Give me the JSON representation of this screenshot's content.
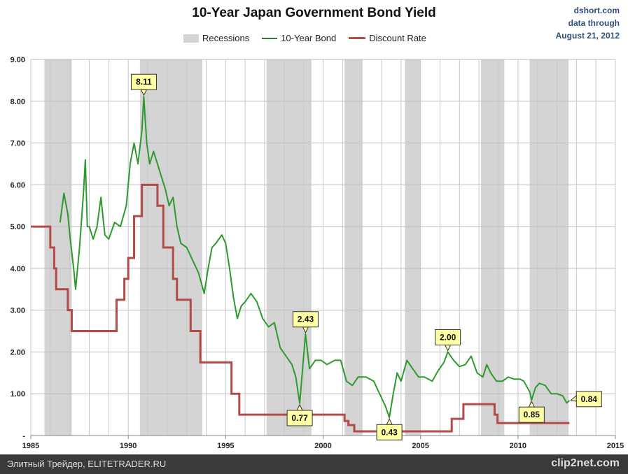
{
  "chart_data": {
    "type": "line",
    "title": "10-Year Japan Government Bond Yield",
    "source": [
      "dshort.com",
      "data through",
      "August 21, 2012"
    ],
    "legend": {
      "placement": "top",
      "items": [
        "Recessions",
        "10-Year Bond",
        "Discount Rate"
      ]
    },
    "xlim": [
      1985,
      2015
    ],
    "ylim": [
      0,
      9
    ],
    "xticks": [
      1985,
      1990,
      1995,
      2000,
      2005,
      2010,
      2015
    ],
    "yticks": [
      {
        "v": 0,
        "l": "-"
      },
      {
        "v": 1,
        "l": "1.00"
      },
      {
        "v": 2,
        "l": "2.00"
      },
      {
        "v": 3,
        "l": "3.00"
      },
      {
        "v": 4,
        "l": "4.00"
      },
      {
        "v": 5,
        "l": "5.00"
      },
      {
        "v": 6,
        "l": "6.00"
      },
      {
        "v": 7,
        "l": "7.00"
      },
      {
        "v": 8,
        "l": "8.00"
      },
      {
        "v": 9,
        "l": "9.00"
      }
    ],
    "grid": true,
    "colors": {
      "bond": "#2e9a2e",
      "discount": "#b34a48",
      "recession": "#d4d4d4",
      "callout": "#ffffa6"
    },
    "recessions": [
      [
        1985.7,
        1987.1
      ],
      [
        1990.6,
        1993.8
      ],
      [
        1997.1,
        1999.4
      ],
      [
        2001.1,
        2002.0
      ],
      [
        2004.2,
        2005.0
      ],
      [
        2008.1,
        2009.3
      ],
      [
        2010.6,
        2012.6
      ]
    ],
    "series": [
      {
        "name": "10-Year Bond",
        "points": [
          [
            1986.5,
            5.1
          ],
          [
            1986.7,
            5.8
          ],
          [
            1986.9,
            5.3
          ],
          [
            1987.0,
            4.8
          ],
          [
            1987.2,
            4.0
          ],
          [
            1987.3,
            3.5
          ],
          [
            1987.5,
            4.5
          ],
          [
            1987.7,
            5.8
          ],
          [
            1987.8,
            6.6
          ],
          [
            1987.9,
            5.0
          ],
          [
            1988.0,
            5.0
          ],
          [
            1988.2,
            4.7
          ],
          [
            1988.4,
            5.0
          ],
          [
            1988.6,
            5.7
          ],
          [
            1988.8,
            4.8
          ],
          [
            1989.0,
            4.7
          ],
          [
            1989.3,
            5.1
          ],
          [
            1989.6,
            5.0
          ],
          [
            1989.9,
            5.5
          ],
          [
            1990.1,
            6.5
          ],
          [
            1990.3,
            7.0
          ],
          [
            1990.5,
            6.5
          ],
          [
            1990.7,
            7.3
          ],
          [
            1990.8,
            8.11
          ],
          [
            1990.95,
            7.0
          ],
          [
            1991.1,
            6.5
          ],
          [
            1991.3,
            6.8
          ],
          [
            1991.5,
            6.5
          ],
          [
            1991.7,
            6.2
          ],
          [
            1991.9,
            5.9
          ],
          [
            1992.1,
            5.5
          ],
          [
            1992.3,
            5.7
          ],
          [
            1992.5,
            5.0
          ],
          [
            1992.7,
            4.6
          ],
          [
            1993.0,
            4.5
          ],
          [
            1993.3,
            4.2
          ],
          [
            1993.6,
            3.9
          ],
          [
            1993.9,
            3.4
          ],
          [
            1994.1,
            4.0
          ],
          [
            1994.3,
            4.5
          ],
          [
            1994.5,
            4.6
          ],
          [
            1994.8,
            4.8
          ],
          [
            1995.0,
            4.6
          ],
          [
            1995.2,
            4.0
          ],
          [
            1995.4,
            3.3
          ],
          [
            1995.6,
            2.8
          ],
          [
            1995.8,
            3.1
          ],
          [
            1996.0,
            3.2
          ],
          [
            1996.3,
            3.4
          ],
          [
            1996.6,
            3.2
          ],
          [
            1996.9,
            2.8
          ],
          [
            1997.2,
            2.6
          ],
          [
            1997.5,
            2.7
          ],
          [
            1997.8,
            2.1
          ],
          [
            1998.1,
            1.9
          ],
          [
            1998.4,
            1.7
          ],
          [
            1998.6,
            1.4
          ],
          [
            1998.8,
            0.77
          ],
          [
            1999.0,
            1.9
          ],
          [
            1999.1,
            2.43
          ],
          [
            1999.3,
            1.6
          ],
          [
            1999.6,
            1.8
          ],
          [
            1999.9,
            1.8
          ],
          [
            2000.2,
            1.7
          ],
          [
            2000.6,
            1.8
          ],
          [
            2000.9,
            1.8
          ],
          [
            2001.2,
            1.3
          ],
          [
            2001.5,
            1.2
          ],
          [
            2001.8,
            1.4
          ],
          [
            2002.2,
            1.4
          ],
          [
            2002.6,
            1.3
          ],
          [
            2002.9,
            1.0
          ],
          [
            2003.2,
            0.7
          ],
          [
            2003.4,
            0.43
          ],
          [
            2003.6,
            1.0
          ],
          [
            2003.8,
            1.5
          ],
          [
            2004.0,
            1.3
          ],
          [
            2004.3,
            1.8
          ],
          [
            2004.6,
            1.6
          ],
          [
            2004.9,
            1.4
          ],
          [
            2005.2,
            1.4
          ],
          [
            2005.6,
            1.3
          ],
          [
            2005.9,
            1.55
          ],
          [
            2006.2,
            1.75
          ],
          [
            2006.4,
            2.0
          ],
          [
            2006.7,
            1.8
          ],
          [
            2007.0,
            1.65
          ],
          [
            2007.3,
            1.7
          ],
          [
            2007.6,
            1.9
          ],
          [
            2007.9,
            1.5
          ],
          [
            2008.2,
            1.4
          ],
          [
            2008.4,
            1.7
          ],
          [
            2008.6,
            1.5
          ],
          [
            2008.9,
            1.3
          ],
          [
            2009.2,
            1.3
          ],
          [
            2009.5,
            1.4
          ],
          [
            2009.8,
            1.35
          ],
          [
            2010.1,
            1.35
          ],
          [
            2010.3,
            1.3
          ],
          [
            2010.6,
            1.05
          ],
          [
            2010.7,
            0.85
          ],
          [
            2010.9,
            1.15
          ],
          [
            2011.1,
            1.25
          ],
          [
            2011.4,
            1.2
          ],
          [
            2011.7,
            1.0
          ],
          [
            2012.0,
            1.0
          ],
          [
            2012.3,
            0.95
          ],
          [
            2012.5,
            0.78
          ],
          [
            2012.64,
            0.84
          ]
        ]
      },
      {
        "name": "Discount Rate",
        "steps": [
          [
            1985.0,
            5.0
          ],
          [
            1986.0,
            4.5
          ],
          [
            1986.2,
            4.0
          ],
          [
            1986.3,
            3.5
          ],
          [
            1986.9,
            3.0
          ],
          [
            1987.1,
            2.5
          ],
          [
            1989.4,
            3.25
          ],
          [
            1989.8,
            3.75
          ],
          [
            1990.0,
            4.25
          ],
          [
            1990.3,
            5.25
          ],
          [
            1990.7,
            6.0
          ],
          [
            1991.5,
            5.5
          ],
          [
            1991.8,
            4.5
          ],
          [
            1992.3,
            3.75
          ],
          [
            1992.5,
            3.25
          ],
          [
            1993.2,
            2.5
          ],
          [
            1993.7,
            1.75
          ],
          [
            1995.3,
            1.0
          ],
          [
            1995.7,
            0.5
          ],
          [
            2001.1,
            0.35
          ],
          [
            2001.3,
            0.25
          ],
          [
            2001.6,
            0.1
          ],
          [
            2006.6,
            0.4
          ],
          [
            2007.2,
            0.75
          ],
          [
            2008.8,
            0.5
          ],
          [
            2008.95,
            0.3
          ],
          [
            2012.64,
            0.3
          ]
        ]
      }
    ],
    "annotations": [
      {
        "label": "8.11",
        "x": 1990.8,
        "y": 8.11,
        "dir": "up"
      },
      {
        "label": "2.43",
        "x": 1999.1,
        "y": 2.43,
        "dir": "up"
      },
      {
        "label": "2.00",
        "x": 2006.4,
        "y": 2.0,
        "dir": "up"
      },
      {
        "label": "0.77",
        "x": 1998.8,
        "y": 0.77,
        "dir": "down"
      },
      {
        "label": "0.43",
        "x": 2003.4,
        "y": 0.43,
        "dir": "down"
      },
      {
        "label": "0.85",
        "x": 2010.7,
        "y": 0.85,
        "dir": "down"
      },
      {
        "label": "0.84",
        "x": 2012.64,
        "y": 0.84,
        "dir": "right"
      }
    ]
  },
  "footer": {
    "left": "Элитный Трейдер, ELITETRADER.RU",
    "right": "clip2net.com"
  }
}
